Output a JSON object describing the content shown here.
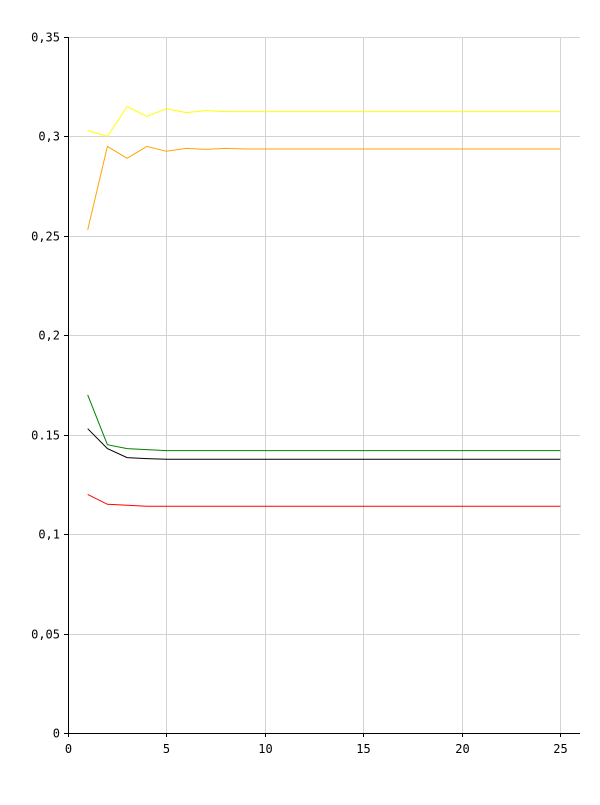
{
  "chart_data": {
    "type": "line",
    "title": "",
    "xlabel": "",
    "ylabel": "",
    "xlim": [
      0,
      26
    ],
    "ylim": [
      0,
      0.35
    ],
    "grid": true,
    "x_ticks": [
      {
        "value": 0,
        "label": "0"
      },
      {
        "value": 5,
        "label": "5"
      },
      {
        "value": 10,
        "label": "10"
      },
      {
        "value": 15,
        "label": "15"
      },
      {
        "value": 20,
        "label": "20"
      },
      {
        "value": 25,
        "label": "25"
      }
    ],
    "y_ticks": [
      {
        "value": 0,
        "label": "0"
      },
      {
        "value": 0.05,
        "label": "0,05"
      },
      {
        "value": 0.1,
        "label": "0,1"
      },
      {
        "value": 0.15,
        "label": "0.15"
      },
      {
        "value": 0.2,
        "label": "0,2"
      },
      {
        "value": 0.25,
        "label": "0,25"
      },
      {
        "value": 0.3,
        "label": "0,3"
      },
      {
        "value": 0.35,
        "label": "0,35"
      }
    ],
    "x": [
      1,
      2,
      3,
      4,
      5,
      6,
      7,
      8,
      9,
      10,
      11,
      12,
      13,
      14,
      15,
      16,
      17,
      18,
      19,
      20,
      21,
      22,
      23,
      24,
      25
    ],
    "series": [
      {
        "color": "#ffff00",
        "values": [
          0.303,
          0.3,
          0.315,
          0.31,
          0.314,
          0.312,
          0.313,
          0.3125,
          0.3125,
          0.3125,
          0.3125,
          0.3125,
          0.3125,
          0.3125,
          0.3125,
          0.3125,
          0.3125,
          0.3125,
          0.3125,
          0.3125,
          0.3125,
          0.3125,
          0.3125,
          0.3125,
          0.3125
        ]
      },
      {
        "color": "#ffa500",
        "values": [
          0.253,
          0.295,
          0.289,
          0.295,
          0.2925,
          0.294,
          0.2935,
          0.294,
          0.2937,
          0.2937,
          0.2937,
          0.2937,
          0.2937,
          0.2937,
          0.2937,
          0.2937,
          0.2937,
          0.2937,
          0.2937,
          0.2937,
          0.2937,
          0.2937,
          0.2937,
          0.2937,
          0.2937
        ]
      },
      {
        "color": "#008000",
        "values": [
          0.17,
          0.145,
          0.143,
          0.1425,
          0.142,
          0.142,
          0.142,
          0.142,
          0.142,
          0.142,
          0.142,
          0.142,
          0.142,
          0.142,
          0.142,
          0.142,
          0.142,
          0.142,
          0.142,
          0.142,
          0.142,
          0.142,
          0.142,
          0.142,
          0.142
        ]
      },
      {
        "color": "#000000",
        "values": [
          0.153,
          0.143,
          0.1385,
          0.138,
          0.1377,
          0.1377,
          0.1377,
          0.1377,
          0.1377,
          0.1377,
          0.1377,
          0.1377,
          0.1377,
          0.1377,
          0.1377,
          0.1377,
          0.1377,
          0.1377,
          0.1377,
          0.1377,
          0.1377,
          0.1377,
          0.1377,
          0.1377,
          0.1377
        ]
      },
      {
        "color": "#ff0000",
        "values": [
          0.12,
          0.115,
          0.1145,
          0.114,
          0.114,
          0.114,
          0.114,
          0.114,
          0.114,
          0.114,
          0.114,
          0.114,
          0.114,
          0.114,
          0.114,
          0.114,
          0.114,
          0.114,
          0.114,
          0.114,
          0.114,
          0.114,
          0.114,
          0.114,
          0.114
        ]
      }
    ]
  }
}
